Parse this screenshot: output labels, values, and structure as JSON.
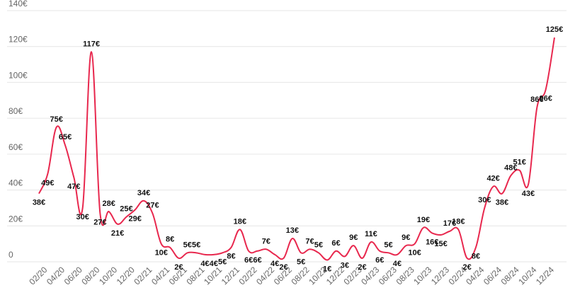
{
  "chart_data": {
    "type": "line",
    "categories": [
      null,
      "02/20",
      null,
      "04/20",
      null,
      "06/20",
      null,
      "08/20",
      null,
      "10/20",
      null,
      "12/20",
      null,
      "02/21",
      null,
      "04/21",
      null,
      "06/21",
      null,
      "08/21",
      null,
      "10/21",
      null,
      "12/21",
      null,
      "02/22",
      null,
      "04/22",
      null,
      "06/22",
      null,
      "08/22",
      null,
      "10/22",
      null,
      "12/22",
      null,
      "02/23",
      null,
      "04/23",
      null,
      "06/23",
      null,
      "08/23",
      null,
      "10/23",
      null,
      "12/23",
      null,
      "02/24",
      null,
      "04/24",
      null,
      "06/24",
      null,
      "08/24",
      null,
      "10/24",
      null,
      "12/24"
    ],
    "values": [
      38,
      49,
      75,
      65,
      47,
      30,
      117,
      27,
      28,
      21,
      25,
      29,
      34,
      27,
      10,
      8,
      2,
      5,
      5,
      4,
      4,
      5,
      8,
      18,
      6,
      6,
      7,
      4,
      2,
      13,
      5,
      7,
      5,
      1,
      6,
      3,
      9,
      2,
      11,
      6,
      5,
      4,
      9,
      10,
      19,
      16,
      15,
      17,
      18,
      2,
      8,
      30,
      42,
      38,
      48,
      51,
      43,
      86,
      96,
      125
    ],
    "value_labels": [
      "38€",
      "49€",
      "75€",
      "65€",
      "47€",
      "30€",
      "117€",
      "27€",
      "28€",
      "21€",
      "25€",
      "29€",
      "34€",
      "27€",
      "10€",
      "8€",
      "2€",
      "5€",
      "5€",
      "4€",
      "4€",
      "5€",
      "8€",
      "18€",
      "6€",
      "6€",
      "7€",
      "4€",
      "2€",
      "13€",
      "5€",
      "7€",
      "5€",
      "1€",
      "6€",
      "3€",
      "9€",
      "2€",
      "11€",
      "6€",
      "5€",
      "4€",
      "9€",
      "10€",
      "19€",
      "16€",
      "15€",
      "17€",
      "18€",
      "2€",
      "8€",
      "30€",
      "42€",
      "38€",
      "48€",
      "51€",
      "43€",
      "86€",
      "96€",
      "125€"
    ],
    "color": "#e8284e",
    "ylim": [
      0,
      140
    ],
    "yticks": [
      {
        "value": 0,
        "label": "0"
      },
      {
        "value": 20,
        "label": "20€"
      },
      {
        "value": 40,
        "label": "40€"
      },
      {
        "value": 60,
        "label": "60€"
      },
      {
        "value": 80,
        "label": "80€"
      },
      {
        "value": 100,
        "label": "100€"
      },
      {
        "value": 120,
        "label": "120€"
      },
      {
        "value": 140,
        "label": "140€"
      }
    ],
    "grid": true
  }
}
